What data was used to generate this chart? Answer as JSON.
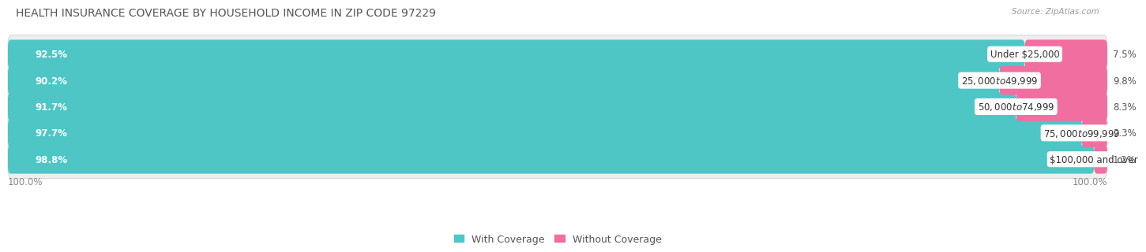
{
  "title": "HEALTH INSURANCE COVERAGE BY HOUSEHOLD INCOME IN ZIP CODE 97229",
  "source": "Source: ZipAtlas.com",
  "categories": [
    "Under $25,000",
    "$25,000 to $49,999",
    "$50,000 to $74,999",
    "$75,000 to $99,999",
    "$100,000 and over"
  ],
  "with_coverage": [
    92.5,
    90.2,
    91.7,
    97.7,
    98.8
  ],
  "without_coverage": [
    7.5,
    9.8,
    8.3,
    2.3,
    1.2
  ],
  "color_with": "#4ec6c6",
  "color_without": "#f06fa0",
  "background_color": "#ffffff",
  "row_bg_odd": "#eeeeee",
  "row_bg_even": "#f8f8f8",
  "title_fontsize": 10,
  "label_fontsize": 8.5,
  "tick_fontsize": 8.5,
  "legend_fontsize": 9,
  "figsize": [
    14.06,
    2.69
  ]
}
